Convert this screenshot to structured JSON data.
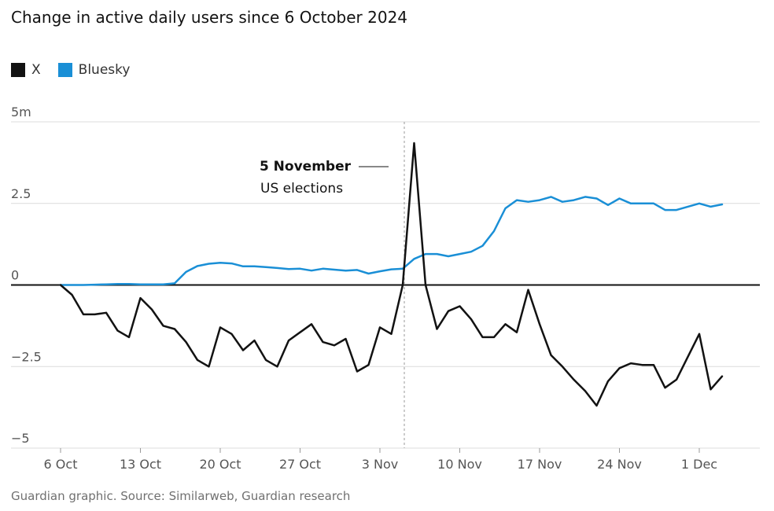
{
  "title": "Change in active daily users since 6 October 2024",
  "legend": [
    {
      "label": "X",
      "color": "#121212"
    },
    {
      "label": "Bluesky",
      "color": "#1a8fd6"
    }
  ],
  "source": "Guardian graphic. Source: Similarweb, Guardian research",
  "annotation": {
    "bold": "5 November",
    "text": "US elections",
    "day_index": 30
  },
  "chart_data": {
    "type": "line",
    "title": "Change in active daily users since 6 October 2024",
    "xlabel": "",
    "ylabel": "",
    "ylim": [
      -5,
      5
    ],
    "y_ticks": [
      {
        "value": 5,
        "label": "5m"
      },
      {
        "value": 2.5,
        "label": "2.5"
      },
      {
        "value": 0,
        "label": "0"
      },
      {
        "value": -2.5,
        "label": "−2.5"
      },
      {
        "value": -5,
        "label": "−5"
      }
    ],
    "x_ticks": [
      {
        "day": 0,
        "label": "6 Oct"
      },
      {
        "day": 7,
        "label": "13 Oct"
      },
      {
        "day": 14,
        "label": "20 Oct"
      },
      {
        "day": 21,
        "label": "27 Oct"
      },
      {
        "day": 28,
        "label": "3 Nov"
      },
      {
        "day": 35,
        "label": "10 Nov"
      },
      {
        "day": 42,
        "label": "17 Nov"
      },
      {
        "day": 49,
        "label": "24 Nov"
      },
      {
        "day": 56,
        "label": "1 Dec"
      }
    ],
    "series": [
      {
        "name": "X",
        "color": "#121212",
        "values": [
          0,
          -0.3,
          -0.9,
          -0.9,
          -0.85,
          -1.4,
          -1.6,
          -0.4,
          -0.75,
          -1.25,
          -1.35,
          -1.75,
          -2.3,
          -2.5,
          -1.3,
          -1.5,
          -2.0,
          -1.7,
          -2.3,
          -2.5,
          -1.7,
          -1.45,
          -1.2,
          -1.75,
          -1.85,
          -1.65,
          -2.65,
          -2.45,
          -1.3,
          -1.5,
          0,
          4.35,
          0,
          -1.35,
          -0.8,
          -0.65,
          -1.05,
          -1.6,
          -1.6,
          -1.2,
          -1.45,
          -0.15,
          -1.2,
          -2.15,
          -2.5,
          -2.9,
          -3.25,
          -3.7,
          -2.95,
          -2.55,
          -2.4,
          -2.45,
          -2.45,
          -3.15,
          -2.9,
          -2.2,
          -1.5,
          -3.2,
          -2.8
        ]
      },
      {
        "name": "Bluesky",
        "color": "#1a8fd6",
        "values": [
          0,
          0,
          0,
          0.01,
          0.02,
          0.03,
          0.03,
          0.02,
          0.02,
          0.02,
          0.05,
          0.4,
          0.58,
          0.65,
          0.68,
          0.66,
          0.57,
          0.57,
          0.55,
          0.52,
          0.49,
          0.5,
          0.44,
          0.5,
          0.47,
          0.44,
          0.46,
          0.35,
          0.42,
          0.48,
          0.5,
          0.8,
          0.95,
          0.95,
          0.88,
          0.95,
          1.02,
          1.2,
          1.65,
          2.35,
          2.6,
          2.55,
          2.6,
          2.7,
          2.55,
          2.6,
          2.7,
          2.65,
          2.45,
          2.65,
          2.5,
          2.5,
          2.5,
          2.3,
          2.3,
          2.4,
          2.5,
          2.4,
          2.47
        ]
      }
    ]
  }
}
